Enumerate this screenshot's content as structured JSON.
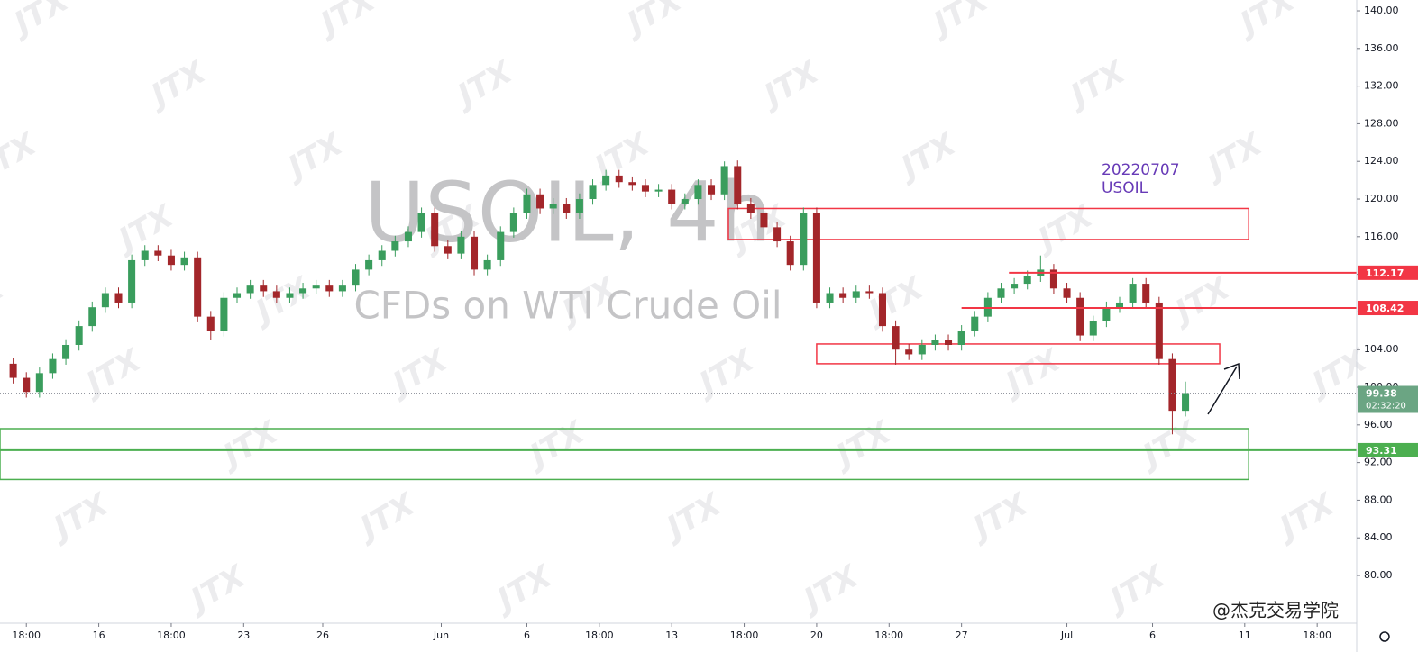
{
  "chart_data": {
    "type": "candlestick",
    "title": "USOIL, 4h",
    "subtitle": "CFDs on WTI Crude Oil",
    "annotation": [
      "20220707",
      "USOIL"
    ],
    "watermark": "JTX",
    "credit": "@杰克交易学院",
    "up_color": "#3a9d5d",
    "down_color": "#a3262a",
    "x": [
      1,
      2,
      3,
      4,
      5,
      6,
      7,
      8,
      9,
      10,
      11,
      12,
      13,
      14,
      15,
      16,
      17,
      18,
      19,
      20,
      21,
      22,
      23,
      24,
      25,
      26,
      27,
      28,
      29,
      30,
      31,
      32,
      33,
      34,
      35,
      36,
      37,
      38,
      39,
      40,
      41,
      42,
      43,
      44,
      45,
      46,
      47,
      48,
      49,
      50,
      51,
      52,
      53,
      54,
      55,
      56,
      57,
      58,
      59,
      60,
      61,
      62,
      63,
      64,
      65,
      66,
      67,
      68,
      69,
      70,
      71,
      72,
      73,
      74,
      75,
      76,
      77,
      78,
      79,
      80,
      81,
      82,
      83,
      84,
      85,
      86,
      87,
      88,
      89,
      90
    ],
    "open": [
      102.5,
      101.0,
      99.5,
      101.5,
      103.0,
      104.5,
      106.5,
      108.5,
      110.0,
      109.0,
      113.5,
      114.5,
      114.0,
      113.0,
      113.8,
      107.5,
      106.0,
      109.5,
      110.0,
      110.8,
      110.2,
      109.5,
      110.0,
      110.5,
      110.8,
      110.2,
      110.8,
      112.5,
      113.5,
      114.5,
      115.5,
      116.5,
      118.5,
      115.0,
      114.2,
      116.0,
      112.5,
      113.5,
      116.5,
      118.5,
      120.5,
      119.0,
      119.5,
      118.5,
      120.0,
      121.5,
      122.5,
      121.8,
      121.5,
      120.8,
      121.0,
      119.5,
      120.0,
      121.5,
      120.5,
      123.5,
      119.5,
      118.5,
      117.0,
      115.5,
      113.0,
      118.5,
      109.0,
      110.0,
      109.5,
      110.2,
      110.0,
      106.5,
      104.0,
      103.5,
      104.5,
      105.0,
      104.5,
      106.0,
      107.5,
      109.5,
      110.5,
      111.0,
      111.8,
      112.5,
      110.5,
      109.5,
      105.5,
      107.0,
      108.5,
      109.0,
      111.0,
      109.0,
      103.0,
      97.5
    ],
    "high": [
      103.1,
      101.6,
      102.1,
      103.6,
      105.1,
      107.1,
      109.1,
      110.6,
      110.6,
      114.1,
      115.1,
      115.1,
      114.6,
      114.4,
      114.4,
      108.1,
      110.1,
      110.6,
      111.4,
      111.4,
      110.8,
      110.6,
      111.1,
      111.4,
      111.4,
      111.4,
      113.1,
      114.1,
      115.1,
      116.1,
      117.1,
      119.1,
      119.1,
      115.6,
      116.6,
      116.6,
      114.1,
      117.1,
      119.1,
      121.1,
      121.1,
      120.1,
      120.1,
      120.6,
      122.1,
      123.1,
      123.1,
      122.4,
      122.1,
      121.6,
      121.6,
      120.6,
      122.1,
      122.1,
      124.0,
      124.1,
      120.1,
      119.1,
      117.6,
      116.1,
      119.1,
      119.1,
      110.6,
      110.6,
      110.8,
      110.8,
      110.6,
      107.1,
      104.6,
      105.1,
      105.6,
      105.6,
      106.6,
      108.1,
      110.1,
      111.1,
      111.6,
      112.4,
      114.0,
      113.1,
      111.1,
      110.1,
      107.6,
      109.1,
      109.6,
      111.6,
      111.6,
      109.6,
      103.6,
      100.6
    ],
    "low": [
      100.4,
      98.9,
      98.9,
      100.9,
      102.4,
      103.9,
      105.9,
      107.9,
      108.4,
      108.4,
      112.9,
      113.4,
      112.4,
      112.4,
      106.9,
      105.0,
      105.4,
      108.9,
      109.4,
      109.6,
      108.9,
      108.9,
      109.4,
      109.9,
      109.6,
      109.6,
      110.2,
      111.9,
      112.9,
      113.9,
      114.9,
      115.9,
      114.4,
      113.6,
      113.6,
      111.9,
      111.9,
      112.9,
      115.9,
      117.9,
      118.4,
      118.4,
      117.9,
      117.9,
      119.4,
      120.9,
      121.2,
      120.9,
      120.2,
      120.2,
      118.9,
      118.9,
      119.4,
      119.9,
      119.9,
      118.9,
      117.9,
      116.4,
      114.9,
      112.4,
      112.4,
      108.4,
      108.4,
      108.9,
      108.9,
      109.4,
      105.9,
      102.4,
      102.9,
      102.9,
      103.9,
      103.9,
      103.9,
      105.4,
      106.9,
      108.9,
      109.9,
      110.4,
      111.2,
      109.9,
      108.9,
      104.9,
      104.9,
      106.4,
      107.9,
      108.4,
      108.4,
      102.4,
      95.0,
      96.9
    ],
    "close": [
      101.0,
      99.5,
      101.5,
      103.0,
      104.5,
      106.5,
      108.5,
      110.0,
      109.0,
      113.5,
      114.5,
      114.0,
      113.0,
      113.8,
      107.5,
      106.0,
      109.5,
      110.0,
      110.8,
      110.2,
      109.5,
      110.0,
      110.5,
      110.8,
      110.2,
      110.8,
      112.5,
      113.5,
      114.5,
      115.5,
      116.5,
      118.5,
      115.0,
      114.2,
      116.0,
      112.5,
      113.5,
      116.5,
      118.5,
      120.5,
      119.0,
      119.5,
      118.5,
      120.0,
      121.5,
      122.5,
      121.8,
      121.5,
      120.8,
      121.0,
      119.5,
      120.0,
      121.5,
      120.5,
      123.5,
      119.5,
      118.5,
      117.0,
      115.5,
      113.0,
      118.5,
      109.0,
      110.0,
      109.5,
      110.2,
      110.0,
      106.5,
      104.0,
      103.5,
      104.5,
      105.0,
      104.5,
      106.0,
      107.5,
      109.5,
      110.5,
      111.0,
      111.8,
      112.5,
      110.5,
      109.5,
      105.5,
      107.0,
      108.5,
      109.0,
      111.0,
      109.0,
      103.0,
      97.5,
      99.38
    ],
    "countdown": "02:32:20",
    "xlim": [
      0,
      103
    ],
    "ylim": [
      74.93,
      141.15
    ],
    "xticks": [
      {
        "value": 2,
        "label": "18:00"
      },
      {
        "value": 7.5,
        "label": "16"
      },
      {
        "value": 13,
        "label": "18:00"
      },
      {
        "value": 18.5,
        "label": "23"
      },
      {
        "value": 24.5,
        "label": "26"
      },
      {
        "value": 33.5,
        "label": "Jun"
      },
      {
        "value": 40,
        "label": "6"
      },
      {
        "value": 45.5,
        "label": "18:00"
      },
      {
        "value": 51,
        "label": "13"
      },
      {
        "value": 56.5,
        "label": "18:00"
      },
      {
        "value": 62,
        "label": "20"
      },
      {
        "value": 67.5,
        "label": "18:00"
      },
      {
        "value": 73,
        "label": "27"
      },
      {
        "value": 81,
        "label": "Jul"
      },
      {
        "value": 87.5,
        "label": "6"
      },
      {
        "value": 94.5,
        "label": "11"
      },
      {
        "value": 100,
        "label": "18:00"
      }
    ],
    "yticks": [
      {
        "value": 80,
        "label": "80.00"
      },
      {
        "value": 84,
        "label": "84.00"
      },
      {
        "value": 88,
        "label": "88.00"
      },
      {
        "value": 92,
        "label": "92.00"
      },
      {
        "value": 96,
        "label": "96.00"
      },
      {
        "value": 100,
        "label": "100.00"
      },
      {
        "value": 104,
        "label": "104.00"
      },
      {
        "value": 108,
        "label": "108.00"
      },
      {
        "value": 112,
        "label": "112.00"
      },
      {
        "value": 116,
        "label": "116.00"
      },
      {
        "value": 120,
        "label": "120.00"
      },
      {
        "value": 124,
        "label": "124.00"
      },
      {
        "value": 128,
        "label": "128.00"
      },
      {
        "value": 132,
        "label": "132.00"
      },
      {
        "value": 136,
        "label": "136.00"
      },
      {
        "value": 140,
        "label": "140.00"
      }
    ],
    "price_lines": [
      {
        "value": 112.17,
        "from": 76.6,
        "color": "#f23645"
      },
      {
        "value": 108.42,
        "from": 73,
        "color": "#f23645"
      },
      {
        "value": 93.31,
        "from": 0,
        "color": "#4caf50"
      }
    ],
    "zones": [
      {
        "x": [
          55.3,
          94.8
        ],
        "y": [
          119.0,
          115.7
        ],
        "color": "#f23645"
      },
      {
        "x": [
          62,
          92.6
        ],
        "y": [
          104.6,
          102.5
        ],
        "color": "#f23645"
      },
      {
        "x": [
          0,
          94.8
        ],
        "y": [
          95.6,
          90.2
        ],
        "color": "#4caf50"
      }
    ]
  }
}
